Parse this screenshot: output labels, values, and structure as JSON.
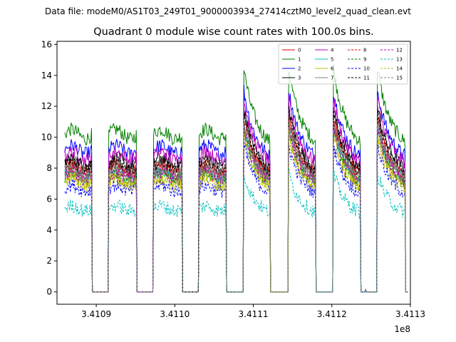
{
  "suptitle": "Data file: modeM0/AS1T03_249T01_9000003934_27414cztM0_level2_quad_clean.evt",
  "chart_data": {
    "type": "line",
    "title": "Quadrant 0 module wise count rates with 100.0s bins.",
    "xlabel": "",
    "ylabel": "",
    "x_offset_label": "1e8",
    "xlim": [
      3.41085,
      3.4113
    ],
    "ylim": [
      -0.8,
      16.2
    ],
    "xticks": [
      3.4109,
      3.411,
      3.4111,
      3.4112,
      3.4113
    ],
    "xtick_labels": [
      "3.4109",
      "3.4110",
      "3.4111",
      "3.4112",
      "3.4113"
    ],
    "yticks": [
      0,
      2,
      4,
      6,
      8,
      10,
      12,
      14,
      16
    ],
    "ytick_labels": [
      "0",
      "2",
      "4",
      "6",
      "8",
      "10",
      "12",
      "14",
      "16"
    ],
    "grid": false,
    "legend_position": "top-right",
    "segments": [
      {
        "start": 3.41086,
        "end": 3.410895,
        "shape": "flat"
      },
      {
        "start": 3.410916,
        "end": 3.410952,
        "shape": "flat"
      },
      {
        "start": 3.410973,
        "end": 3.41101,
        "shape": "flat"
      },
      {
        "start": 3.411031,
        "end": 3.411066,
        "shape": "flat"
      },
      {
        "start": 3.411088,
        "end": 3.411122,
        "shape": "decay"
      },
      {
        "start": 3.411145,
        "end": 3.41118,
        "shape": "decay"
      },
      {
        "start": 3.411202,
        "end": 3.411237,
        "shape": "decay"
      },
      {
        "start": 3.411258,
        "end": 3.411294,
        "shape": "decay"
      }
    ],
    "spike": {
      "x": 3.411243,
      "value": 0.15
    },
    "series": [
      {
        "name": "0",
        "color": "#e00000",
        "dashed": false,
        "base": 8.0
      },
      {
        "name": "1",
        "color": "#008000",
        "dashed": false,
        "base": 10.2
      },
      {
        "name": "2",
        "color": "#0000ff",
        "dashed": false,
        "base": 9.2
      },
      {
        "name": "3",
        "color": "#000000",
        "dashed": false,
        "base": 8.4
      },
      {
        "name": "4",
        "color": "#bf00bf",
        "dashed": false,
        "base": 8.8
      },
      {
        "name": "5",
        "color": "#00bfbf",
        "dashed": false,
        "base": 7.6
      },
      {
        "name": "6",
        "color": "#bfbf00",
        "dashed": false,
        "base": 7.2
      },
      {
        "name": "7",
        "color": "#808080",
        "dashed": false,
        "base": 7.9
      },
      {
        "name": "8",
        "color": "#e00000",
        "dashed": true,
        "base": 7.8
      },
      {
        "name": "9",
        "color": "#008000",
        "dashed": true,
        "base": 7.4
      },
      {
        "name": "10",
        "color": "#0000ff",
        "dashed": true,
        "base": 6.7
      },
      {
        "name": "11",
        "color": "#000000",
        "dashed": true,
        "base": 8.2
      },
      {
        "name": "12",
        "color": "#bf00bf",
        "dashed": true,
        "base": 7.5
      },
      {
        "name": "13",
        "color": "#00bfbf",
        "dashed": true,
        "base": 5.4
      },
      {
        "name": "14",
        "color": "#bfbf00",
        "dashed": true,
        "base": 7.1
      },
      {
        "name": "15",
        "color": "#808080",
        "dashed": true,
        "base": 7.7
      }
    ]
  }
}
